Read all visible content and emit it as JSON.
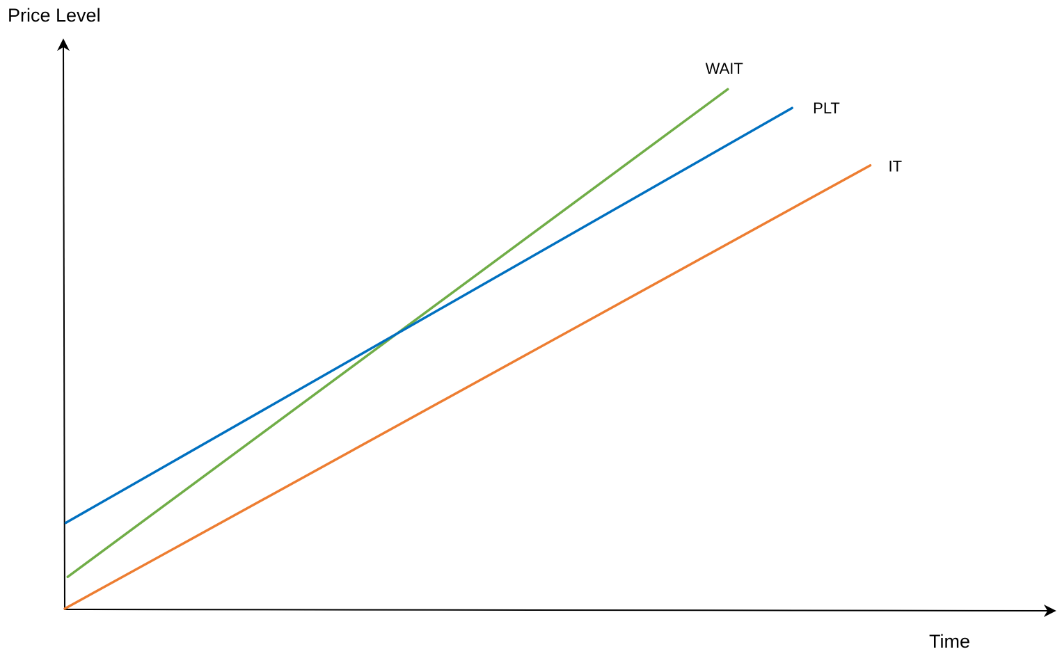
{
  "chart_data": {
    "type": "line",
    "y_label": "Price Level",
    "x_label": "Time",
    "xlim": [
      0,
      100
    ],
    "ylim": [
      0,
      100
    ],
    "grid": false,
    "series": [
      {
        "name": "WAIT",
        "color": "#70ad47",
        "x": [
          0.3,
          67.0
        ],
        "values": [
          5.6,
          91.4
        ]
      },
      {
        "name": "PLT",
        "color": "#0070c0",
        "x": [
          0.1,
          73.5
        ],
        "values": [
          15.1,
          88.1
        ]
      },
      {
        "name": "IT",
        "color": "#ed7d31",
        "x": [
          0,
          81.4
        ],
        "values": [
          0,
          78.0
        ]
      }
    ]
  }
}
